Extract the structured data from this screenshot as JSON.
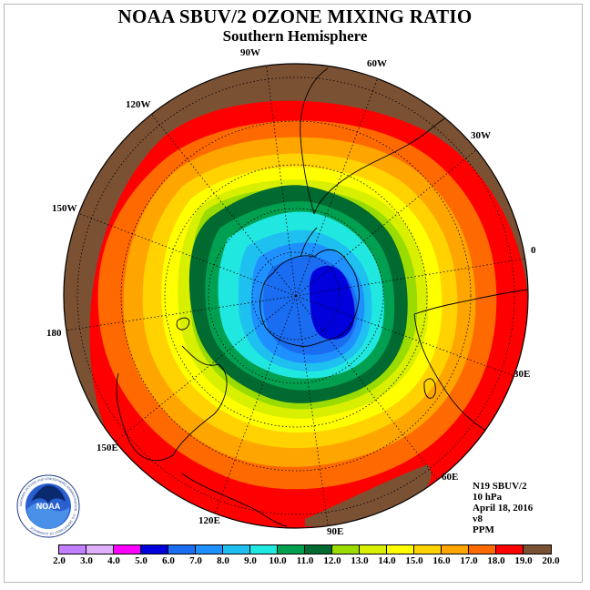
{
  "title": "NOAA SBUV/2 OZONE MIXING RATIO",
  "subtitle": "Southern Hemisphere",
  "longitude_labels": {
    "lon_90w": "90W",
    "lon_60w": "60W",
    "lon_30w": "30W",
    "lon_0": "0",
    "lon_30e": "30E",
    "lon_60e": "60E",
    "lon_90e": "90E",
    "lon_120e": "120E",
    "lon_150e": "150E",
    "lon_180": "180",
    "lon_150w": "150W",
    "lon_120w": "120W"
  },
  "info": {
    "satellite": "N19 SBUV/2",
    "pressure": "10 hPa",
    "date": "April 18, 2016",
    "version": "v8",
    "units": "PPM"
  },
  "logo": {
    "name": "NOAA",
    "ring_text": "NATIONAL OCEANIC AND ATMOSPHERIC ADMINISTRATION · U.S. DEPARTMENT OF COMMERCE"
  },
  "colorbar": {
    "colors": [
      "#c080ff",
      "#e0b0ff",
      "#ff00ff",
      "#0000dd",
      "#1a6cf0",
      "#1e90ff",
      "#1ec0f0",
      "#20e8e0",
      "#00a050",
      "#006a30",
      "#9adc00",
      "#d8f000",
      "#ffff00",
      "#ffd200",
      "#ffa500",
      "#ff6a00",
      "#ff0000",
      "#7b5134"
    ],
    "ticks": [
      "2.0",
      "3.0",
      "4.0",
      "5.0",
      "6.0",
      "7.0",
      "8.0",
      "9.0",
      "10.0",
      "11.0",
      "12.0",
      "13.0",
      "14.0",
      "15.0",
      "16.0",
      "17.0",
      "18.0",
      "19.0",
      "20.0"
    ]
  }
}
